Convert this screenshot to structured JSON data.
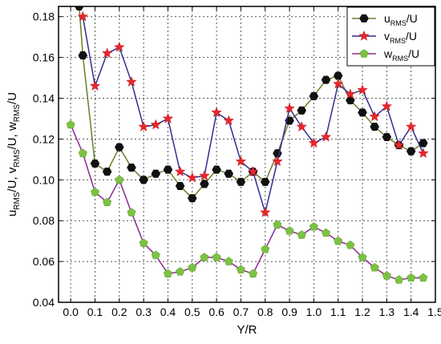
{
  "chart_data": {
    "type": "line",
    "xlabel": "Y/R",
    "ylabel": "u_RMS/U, v_RMS/U, w_RMS/U",
    "ylabel_parts": [
      {
        "main": "u",
        "sub": "RMS",
        "tail": "/U, "
      },
      {
        "main": "v",
        "sub": "RMS",
        "tail": "/U, "
      },
      {
        "main": "w",
        "sub": "RMS",
        "tail": "/U"
      }
    ],
    "xlim": [
      -0.05,
      1.5
    ],
    "ylim": [
      0.04,
      0.185
    ],
    "xticks": [
      "0.0",
      "0.1",
      "0.2",
      "0.3",
      "0.4",
      "0.5",
      "0.6",
      "0.7",
      "0.8",
      "0.9",
      "1.0",
      "1.1",
      "1.2",
      "1.3",
      "1.4",
      "1.5"
    ],
    "yticks": [
      "0.04",
      "0.06",
      "0.08",
      "0.10",
      "0.12",
      "0.14",
      "0.16",
      "0.18"
    ],
    "grid": "dashed",
    "legend_position": "top-right",
    "series": [
      {
        "name": "u_RMS/U",
        "legend": {
          "main": "u",
          "sub": "RMS",
          "tail": "/U"
        },
        "marker": "hexagon",
        "line_color": "#6b7f2a",
        "marker_color": "#111111",
        "x": [
          0.035,
          0.05,
          0.1,
          0.15,
          0.2,
          0.25,
          0.3,
          0.35,
          0.4,
          0.45,
          0.5,
          0.55,
          0.6,
          0.65,
          0.7,
          0.75,
          0.8,
          0.85,
          0.9,
          0.95,
          1.0,
          1.05,
          1.1,
          1.15,
          1.2,
          1.25,
          1.3,
          1.35,
          1.4,
          1.45
        ],
        "y": [
          0.185,
          0.161,
          0.108,
          0.104,
          0.116,
          0.106,
          0.1,
          0.103,
          0.105,
          0.097,
          0.091,
          0.098,
          0.105,
          0.103,
          0.099,
          0.104,
          0.099,
          0.113,
          0.129,
          0.134,
          0.141,
          0.149,
          0.151,
          0.139,
          0.133,
          0.126,
          0.121,
          0.117,
          0.114,
          0.118
        ]
      },
      {
        "name": "v_RMS/U",
        "legend": {
          "main": "v",
          "sub": "RMS",
          "tail": "/U"
        },
        "marker": "star",
        "line_color": "#2e2f8f",
        "marker_color": "#e8262b",
        "x": [
          0.05,
          0.1,
          0.15,
          0.2,
          0.25,
          0.3,
          0.35,
          0.4,
          0.45,
          0.5,
          0.55,
          0.6,
          0.65,
          0.7,
          0.75,
          0.8,
          0.85,
          0.9,
          0.95,
          1.0,
          1.05,
          1.1,
          1.15,
          1.2,
          1.25,
          1.3,
          1.35,
          1.4,
          1.45
        ],
        "y": [
          0.18,
          0.146,
          0.162,
          0.165,
          0.148,
          0.126,
          0.127,
          0.13,
          0.104,
          0.101,
          0.102,
          0.133,
          0.129,
          0.109,
          0.104,
          0.084,
          0.109,
          0.135,
          0.126,
          0.118,
          0.121,
          0.147,
          0.142,
          0.144,
          0.131,
          0.136,
          0.117,
          0.126,
          0.113
        ]
      },
      {
        "name": "w_RMS/U",
        "legend": {
          "main": "w",
          "sub": "RMS",
          "tail": "/U"
        },
        "marker": "pentagon",
        "line_color": "#8b2a8f",
        "marker_color": "#7cc242",
        "x": [
          0.0,
          0.05,
          0.1,
          0.15,
          0.2,
          0.25,
          0.3,
          0.35,
          0.4,
          0.45,
          0.5,
          0.55,
          0.6,
          0.65,
          0.7,
          0.75,
          0.8,
          0.85,
          0.9,
          0.95,
          1.0,
          1.05,
          1.1,
          1.15,
          1.2,
          1.25,
          1.3,
          1.35,
          1.4,
          1.45
        ],
        "y": [
          0.127,
          0.113,
          0.094,
          0.089,
          0.1,
          0.084,
          0.069,
          0.063,
          0.054,
          0.055,
          0.057,
          0.062,
          0.062,
          0.06,
          0.056,
          0.054,
          0.066,
          0.078,
          0.075,
          0.073,
          0.077,
          0.074,
          0.07,
          0.068,
          0.062,
          0.057,
          0.053,
          0.051,
          0.052,
          0.052
        ]
      }
    ]
  }
}
